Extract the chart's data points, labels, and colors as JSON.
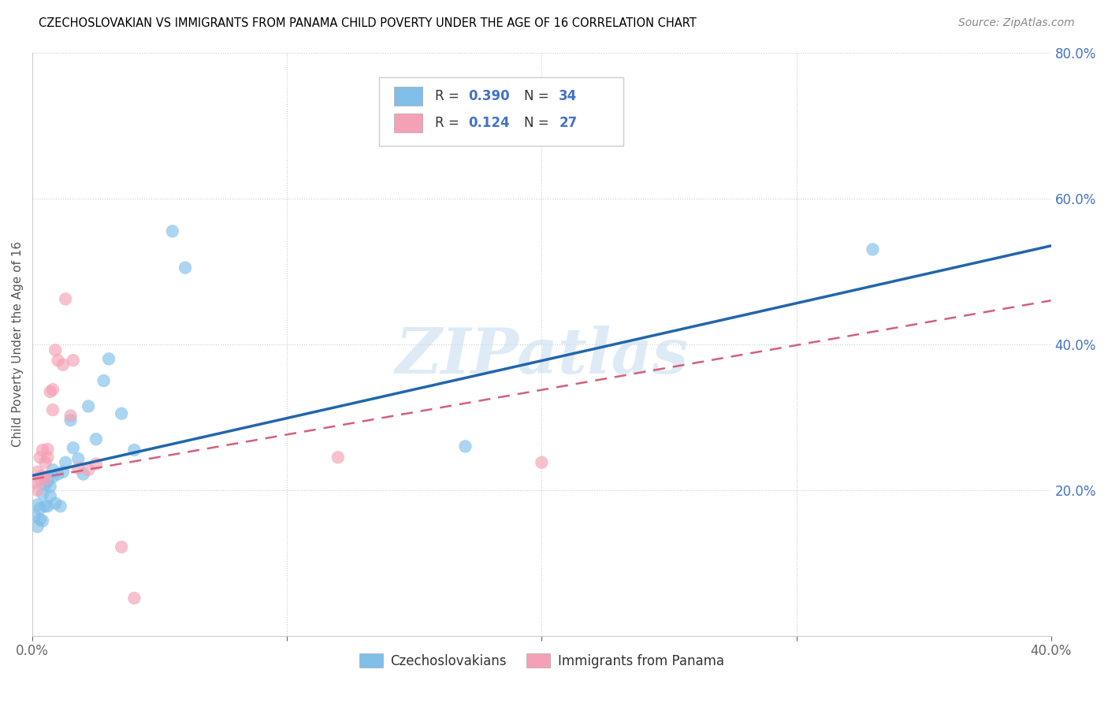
{
  "title": "CZECHOSLOVAKIAN VS IMMIGRANTS FROM PANAMA CHILD POVERTY UNDER THE AGE OF 16 CORRELATION CHART",
  "source": "Source: ZipAtlas.com",
  "ylabel": "Child Poverty Under the Age of 16",
  "xlim": [
    0,
    0.4
  ],
  "ylim": [
    0,
    0.8
  ],
  "watermark": "ZIPatlas",
  "blue_color": "#7fbfea",
  "pink_color": "#f4a0b5",
  "line_blue": "#2166ac",
  "line_pink": "#d4607a",
  "czechs_x": [
    0.001,
    0.002,
    0.002,
    0.003,
    0.003,
    0.004,
    0.004,
    0.005,
    0.005,
    0.006,
    0.006,
    0.007,
    0.007,
    0.008,
    0.008,
    0.009,
    0.01,
    0.011,
    0.012,
    0.013,
    0.015,
    0.016,
    0.018,
    0.02,
    0.022,
    0.025,
    0.028,
    0.03,
    0.035,
    0.04,
    0.055,
    0.06,
    0.17,
    0.33
  ],
  "czechs_y": [
    0.165,
    0.15,
    0.18,
    0.16,
    0.175,
    0.158,
    0.195,
    0.178,
    0.208,
    0.178,
    0.212,
    0.192,
    0.205,
    0.228,
    0.218,
    0.182,
    0.222,
    0.178,
    0.225,
    0.238,
    0.296,
    0.258,
    0.243,
    0.222,
    0.315,
    0.27,
    0.35,
    0.38,
    0.305,
    0.255,
    0.555,
    0.505,
    0.26,
    0.53
  ],
  "panama_x": [
    0.001,
    0.002,
    0.002,
    0.003,
    0.003,
    0.004,
    0.004,
    0.005,
    0.005,
    0.006,
    0.006,
    0.007,
    0.008,
    0.008,
    0.009,
    0.01,
    0.012,
    0.013,
    0.015,
    0.016,
    0.018,
    0.022,
    0.025,
    0.035,
    0.04,
    0.12,
    0.2
  ],
  "panama_y": [
    0.21,
    0.2,
    0.225,
    0.215,
    0.245,
    0.22,
    0.255,
    0.215,
    0.238,
    0.245,
    0.256,
    0.335,
    0.31,
    0.338,
    0.392,
    0.378,
    0.372,
    0.462,
    0.302,
    0.378,
    0.23,
    0.228,
    0.236,
    0.122,
    0.052,
    0.245,
    0.238
  ],
  "blue_line_x": [
    0.0,
    0.4
  ],
  "blue_line_y": [
    0.22,
    0.535
  ],
  "pink_line_x": [
    0.0,
    0.4
  ],
  "pink_line_y": [
    0.215,
    0.46
  ]
}
